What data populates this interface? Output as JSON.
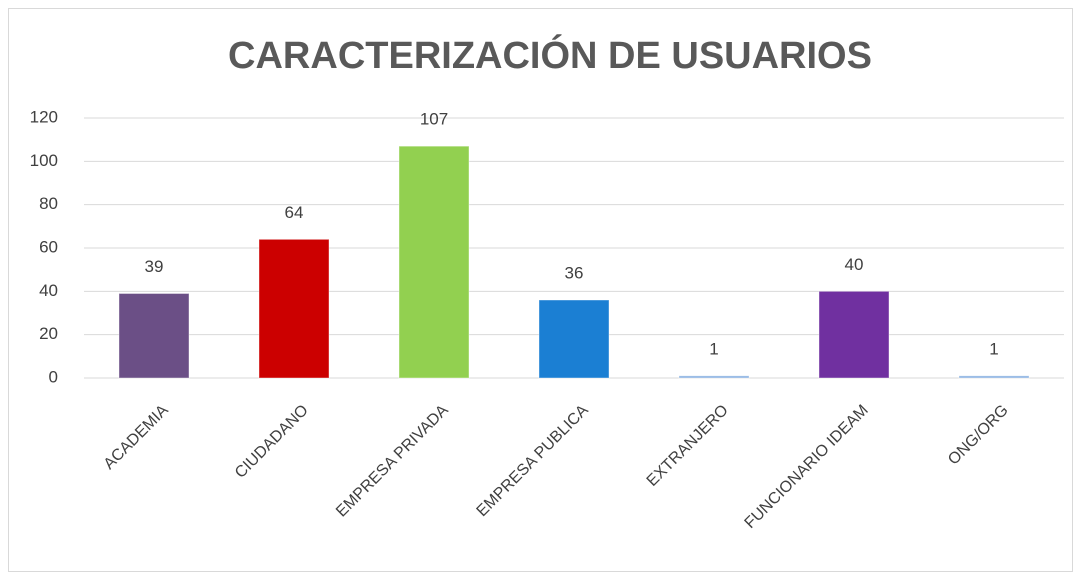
{
  "chart_data": {
    "type": "bar",
    "title": "CARACTERIZACIÓN DE USUARIOS",
    "categories": [
      "ACADEMIA",
      "CIUDADANO",
      "EMPRESA PRIVADA",
      "EMPRESA PUBLICA",
      "EXTRANJERO",
      "FUNCIONARIO IDEAM",
      "ONG/ORG"
    ],
    "values": [
      39,
      64,
      107,
      36,
      1,
      40,
      1
    ],
    "colors": [
      "#6b4f86",
      "#cc0000",
      "#92d050",
      "#1b7fd3",
      "#8db3e2",
      "#7030a0",
      "#8db3e2"
    ],
    "ylim": [
      0,
      120
    ],
    "yticks": [
      0,
      20,
      40,
      60,
      80,
      100,
      120
    ],
    "grid": true
  }
}
